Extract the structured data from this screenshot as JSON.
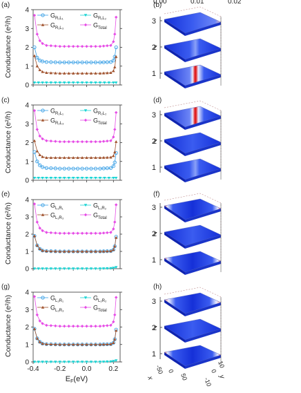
{
  "colorbar_ticks": [
    "0.00",
    "0.01",
    "0.02"
  ],
  "chart_data": [
    {
      "panel": "(a)",
      "type": "line",
      "ylabel": "Conductance (e²/h)",
      "xlabel": "",
      "xlim": [
        -0.4,
        0.25
      ],
      "ylim": [
        0,
        4
      ],
      "xticks": [],
      "yticks": [
        "0",
        "1",
        "2",
        "3",
        "4"
      ],
      "legend": [
        {
          "base": "G",
          "sub": "R₁L₁"
        },
        {
          "base": "G",
          "sub": "R₁L₂"
        },
        {
          "base": "G",
          "sub": "R₁L₃"
        },
        {
          "base": "G",
          "sub": "Total"
        }
      ],
      "series": [
        {
          "color": "#3aa0e6",
          "marker": "circle-open",
          "x": [
            -0.39,
            -0.37,
            -0.35,
            -0.33,
            -0.3,
            -0.2,
            -0.1,
            0.0,
            0.1,
            0.18,
            0.2,
            0.21,
            0.22
          ],
          "values": [
            2.0,
            1.45,
            1.3,
            1.25,
            1.22,
            1.2,
            1.2,
            1.2,
            1.2,
            1.22,
            1.3,
            1.5,
            2.0
          ]
        },
        {
          "color": "#1ad4d4",
          "marker": "triangle-down",
          "x": [
            -0.39,
            -0.3,
            -0.2,
            -0.1,
            0.0,
            0.1,
            0.2,
            0.22
          ],
          "values": [
            0.12,
            0.12,
            0.12,
            0.12,
            0.12,
            0.12,
            0.12,
            0.12
          ]
        },
        {
          "color": "#a0522d",
          "marker": "triangle-up",
          "x": [
            -0.39,
            -0.37,
            -0.35,
            -0.33,
            -0.3,
            -0.2,
            -0.1,
            0.0,
            0.1,
            0.18,
            0.2,
            0.21,
            0.22
          ],
          "values": [
            1.55,
            1.0,
            0.8,
            0.7,
            0.65,
            0.62,
            0.62,
            0.62,
            0.62,
            0.65,
            0.75,
            0.95,
            1.5
          ]
        },
        {
          "color": "#e64ce6",
          "marker": "diamond",
          "x": [
            -0.39,
            -0.37,
            -0.35,
            -0.33,
            -0.3,
            -0.2,
            -0.1,
            0.0,
            0.1,
            0.18,
            0.2,
            0.21,
            0.22
          ],
          "values": [
            3.7,
            2.7,
            2.35,
            2.2,
            2.1,
            2.05,
            2.05,
            2.05,
            2.05,
            2.1,
            2.3,
            2.7,
            3.6
          ]
        }
      ]
    },
    {
      "panel": "(c)",
      "type": "line",
      "ylabel": "Conductance (e²/h)",
      "xlabel": "",
      "xlim": [
        -0.4,
        0.25
      ],
      "ylim": [
        0,
        4
      ],
      "xticks": [],
      "yticks": [
        "0",
        "1",
        "2",
        "3",
        "4"
      ],
      "legend": [
        {
          "base": "G",
          "sub": "R₂L₁"
        },
        {
          "base": "G",
          "sub": "R₂L₂"
        },
        {
          "base": "G",
          "sub": "R₂L₃"
        },
        {
          "base": "G",
          "sub": "Total"
        }
      ],
      "series": [
        {
          "color": "#3aa0e6",
          "marker": "circle-open",
          "x": [
            -0.39,
            -0.37,
            -0.35,
            -0.33,
            -0.3,
            -0.2,
            -0.1,
            0.0,
            0.1,
            0.18,
            0.2,
            0.21,
            0.22
          ],
          "values": [
            1.5,
            1.0,
            0.8,
            0.7,
            0.65,
            0.62,
            0.62,
            0.62,
            0.62,
            0.65,
            0.75,
            0.95,
            1.45
          ]
        },
        {
          "color": "#1ad4d4",
          "marker": "triangle-down",
          "x": [
            -0.39,
            -0.3,
            -0.2,
            -0.1,
            0.0,
            0.1,
            0.2,
            0.22
          ],
          "values": [
            0.12,
            0.12,
            0.12,
            0.12,
            0.12,
            0.12,
            0.12,
            0.12
          ]
        },
        {
          "color": "#a0522d",
          "marker": "triangle-up",
          "x": [
            -0.39,
            -0.37,
            -0.35,
            -0.33,
            -0.3,
            -0.2,
            -0.1,
            0.0,
            0.1,
            0.18,
            0.2,
            0.21,
            0.22
          ],
          "values": [
            2.1,
            1.55,
            1.35,
            1.25,
            1.2,
            1.2,
            1.2,
            1.2,
            1.2,
            1.22,
            1.3,
            1.5,
            2.05
          ]
        },
        {
          "color": "#e64ce6",
          "marker": "diamond",
          "x": [
            -0.39,
            -0.37,
            -0.35,
            -0.33,
            -0.3,
            -0.2,
            -0.1,
            0.0,
            0.1,
            0.18,
            0.2,
            0.21,
            0.22
          ],
          "values": [
            3.7,
            2.7,
            2.35,
            2.2,
            2.1,
            2.05,
            2.05,
            2.05,
            2.05,
            2.1,
            2.3,
            2.7,
            3.6
          ]
        }
      ]
    },
    {
      "panel": "(e)",
      "type": "line",
      "ylabel": "Conductance (e²/h)",
      "xlabel": "",
      "xlim": [
        -0.4,
        0.25
      ],
      "ylim": [
        0,
        4
      ],
      "xticks": [],
      "yticks": [
        "0",
        "1",
        "2",
        "3",
        "4"
      ],
      "legend": [
        {
          "base": "G",
          "sub": "L₁R₁"
        },
        {
          "base": "G",
          "sub": "L₁R₂"
        },
        {
          "base": "G",
          "sub": "L₁R₃"
        },
        {
          "base": "G",
          "sub": "Total"
        }
      ],
      "series": [
        {
          "color": "#3aa0e6",
          "marker": "circle-open",
          "x": [
            -0.39,
            -0.37,
            -0.35,
            -0.33,
            -0.3,
            -0.2,
            -0.1,
            0.0,
            0.1,
            0.18,
            0.2,
            0.21,
            0.22
          ],
          "values": [
            1.9,
            1.35,
            1.15,
            1.05,
            1.02,
            1.0,
            1.0,
            1.0,
            1.0,
            1.02,
            1.1,
            1.3,
            1.85
          ]
        },
        {
          "color": "#1ad4d4",
          "marker": "triangle-down",
          "x": [
            -0.39,
            -0.3,
            -0.2,
            -0.1,
            0.0,
            0.1,
            0.18,
            0.2,
            0.22
          ],
          "values": [
            0.0,
            0.0,
            0.0,
            0.0,
            0.0,
            0.0,
            0.02,
            0.04,
            0.08
          ]
        },
        {
          "color": "#a0522d",
          "marker": "triangle-up",
          "x": [
            -0.39,
            -0.37,
            -0.35,
            -0.33,
            -0.3,
            -0.2,
            -0.1,
            0.0,
            0.1,
            0.18,
            0.2,
            0.21,
            0.22
          ],
          "values": [
            1.9,
            1.35,
            1.15,
            1.05,
            1.02,
            1.0,
            1.0,
            1.0,
            1.0,
            1.02,
            1.1,
            1.3,
            1.8
          ]
        },
        {
          "color": "#e64ce6",
          "marker": "diamond",
          "x": [
            -0.39,
            -0.37,
            -0.35,
            -0.33,
            -0.3,
            -0.2,
            -0.1,
            0.0,
            0.1,
            0.18,
            0.2,
            0.21,
            0.22
          ],
          "values": [
            3.75,
            2.7,
            2.35,
            2.2,
            2.1,
            2.05,
            2.05,
            2.05,
            2.05,
            2.1,
            2.3,
            2.7,
            3.7
          ]
        }
      ]
    },
    {
      "panel": "(g)",
      "type": "line",
      "ylabel": "Conductance (e²/h)",
      "xlabel": "E_F(eV)",
      "xlim": [
        -0.4,
        0.25
      ],
      "ylim": [
        0,
        4
      ],
      "xticks": [
        "-0.4",
        "-0.2",
        "0.0",
        "0.2"
      ],
      "yticks": [
        "0",
        "1",
        "2",
        "3",
        "4"
      ],
      "legend": [
        {
          "base": "G",
          "sub": "L₂R₁"
        },
        {
          "base": "G",
          "sub": "L₂R₂"
        },
        {
          "base": "G",
          "sub": "L₂R₃"
        },
        {
          "base": "G",
          "sub": "Total"
        }
      ],
      "series": [
        {
          "color": "#3aa0e6",
          "marker": "circle-open",
          "x": [
            -0.39,
            -0.37,
            -0.35,
            -0.33,
            -0.3,
            -0.2,
            -0.1,
            0.0,
            0.1,
            0.18,
            0.2,
            0.21,
            0.22
          ],
          "values": [
            1.9,
            1.35,
            1.15,
            1.05,
            1.02,
            1.0,
            1.0,
            1.0,
            1.0,
            1.02,
            1.1,
            1.3,
            1.85
          ]
        },
        {
          "color": "#1ad4d4",
          "marker": "triangle-down",
          "x": [
            -0.39,
            -0.3,
            -0.2,
            -0.1,
            0.0,
            0.1,
            0.18,
            0.2,
            0.22
          ],
          "values": [
            0.0,
            0.0,
            0.0,
            0.0,
            0.0,
            0.0,
            0.02,
            0.04,
            0.08
          ]
        },
        {
          "color": "#a0522d",
          "marker": "triangle-up",
          "x": [
            -0.39,
            -0.37,
            -0.35,
            -0.33,
            -0.3,
            -0.2,
            -0.1,
            0.0,
            0.1,
            0.18,
            0.2,
            0.21,
            0.22
          ],
          "values": [
            1.9,
            1.35,
            1.15,
            1.05,
            1.02,
            1.0,
            1.0,
            1.0,
            1.0,
            1.02,
            1.1,
            1.3,
            1.8
          ]
        },
        {
          "color": "#e64ce6",
          "marker": "diamond",
          "x": [
            -0.39,
            -0.37,
            -0.35,
            -0.33,
            -0.3,
            -0.2,
            -0.1,
            0.0,
            0.1,
            0.18,
            0.2,
            0.21,
            0.22
          ],
          "values": [
            3.75,
            2.7,
            2.35,
            2.2,
            2.1,
            2.05,
            2.05,
            2.05,
            2.05,
            2.1,
            2.3,
            2.7,
            3.7
          ]
        }
      ]
    }
  ],
  "heatmaps": [
    {
      "panel": "(b)",
      "zlabel": "z",
      "zticks": [
        "1",
        "2",
        "3"
      ],
      "layers": [
        {
          "z": "1",
          "pattern": "mid-stripe"
        },
        {
          "z": "2",
          "pattern": "faint"
        },
        {
          "z": "3",
          "pattern": "faint-edge"
        }
      ]
    },
    {
      "panel": "(d)",
      "zlabel": "z",
      "zticks": [
        "1",
        "2",
        "3"
      ],
      "layers": [
        {
          "z": "1",
          "pattern": "faint"
        },
        {
          "z": "2",
          "pattern": "none"
        },
        {
          "z": "3",
          "pattern": "mid-stripe"
        }
      ]
    },
    {
      "panel": "(f)",
      "zlabel": "z",
      "zticks": [
        "1",
        "2",
        "3"
      ],
      "layers": [
        {
          "z": "1",
          "pattern": "edges"
        },
        {
          "z": "2",
          "pattern": "none"
        },
        {
          "z": "3",
          "pattern": "edges"
        }
      ]
    },
    {
      "panel": "(h)",
      "zlabel": "z",
      "zticks": [
        "1",
        "2",
        "3"
      ],
      "layers": [
        {
          "z": "1",
          "pattern": "edges"
        },
        {
          "z": "2",
          "pattern": "none"
        },
        {
          "z": "3",
          "pattern": "edges-faint"
        }
      ],
      "xlabel": "x",
      "ylabel": "y",
      "xticks": [
        "-50",
        "0",
        "50"
      ],
      "yticks": [
        "-10",
        "0",
        "10"
      ]
    }
  ]
}
